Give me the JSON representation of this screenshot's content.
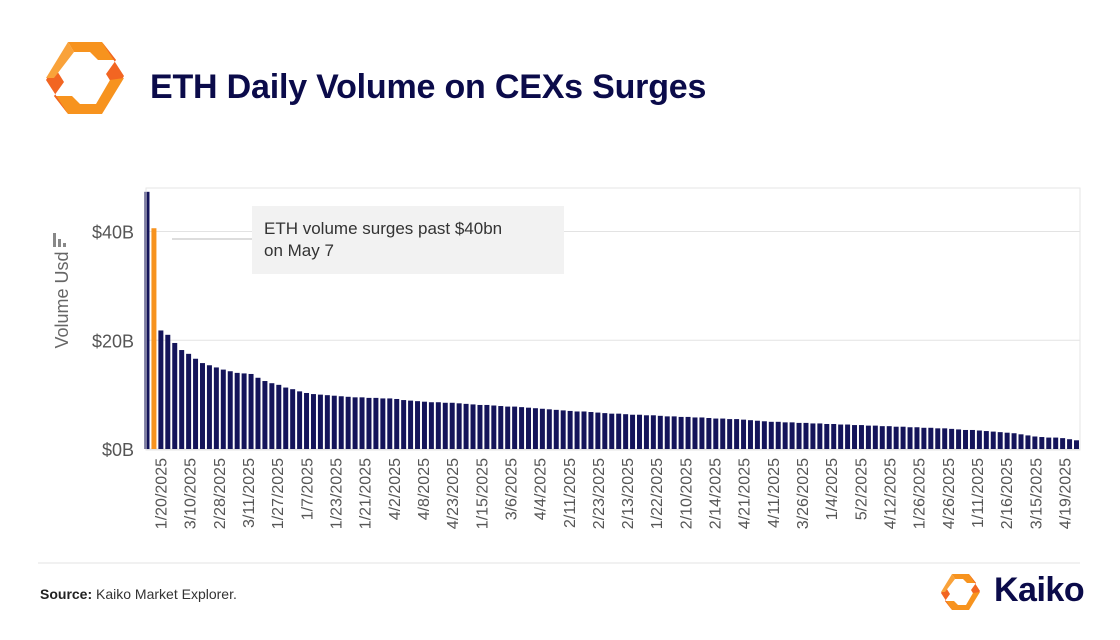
{
  "page": {
    "title": "ETH Daily Volume on CEXs Surges",
    "source_label": "Source:",
    "source_text": "Kaiko Market Explorer.",
    "brand_name": "Kaiko",
    "logo_icon": "kaiko-logo-icon",
    "chart_icon": "bar-chart-icon"
  },
  "colors": {
    "bar": "#14145a",
    "highlight": "#f7931e",
    "title": "#0b0b4a",
    "logo_orange": "#f7931e",
    "logo_dark_orange": "#f26522"
  },
  "chart_data": {
    "type": "bar",
    "ylabel": "Volume Usd",
    "ylim": [
      0,
      48
    ],
    "yticks": [
      0,
      20,
      40
    ],
    "ytick_labels": [
      "$0B",
      "$20B",
      "$40B"
    ],
    "grid": true,
    "highlight_index": 1,
    "annotation": {
      "text_line1": "ETH volume surges past $40bn",
      "text_line2": "on May 7",
      "target_index": 1
    },
    "xtick_labels": [
      "1/20/2025",
      "3/10/2025",
      "2/28/2025",
      "3/11/2025",
      "1/27/2025",
      "1/7/2025",
      "1/23/2025",
      "1/21/2025",
      "4/2/2025",
      "4/8/2025",
      "4/23/2025",
      "1/15/2025",
      "3/6/2025",
      "4/4/2025",
      "2/11/2025",
      "2/23/2025",
      "2/13/2025",
      "1/22/2025",
      "2/10/2025",
      "2/14/2025",
      "4/21/2025",
      "4/11/2025",
      "3/26/2025",
      "1/4/2025",
      "5/2/2025",
      "4/12/2025",
      "1/26/2025",
      "4/26/2025",
      "1/11/2025",
      "2/16/2025",
      "3/15/2025",
      "4/19/2025"
    ],
    "values": [
      47.3,
      40.6,
      21.8,
      21.0,
      19.5,
      18.2,
      17.5,
      16.6,
      15.8,
      15.4,
      15.0,
      14.6,
      14.3,
      14.0,
      13.9,
      13.8,
      13.1,
      12.5,
      12.1,
      11.8,
      11.3,
      11.0,
      10.6,
      10.3,
      10.1,
      10.0,
      9.9,
      9.8,
      9.7,
      9.6,
      9.5,
      9.5,
      9.4,
      9.4,
      9.3,
      9.3,
      9.2,
      9.0,
      8.9,
      8.8,
      8.7,
      8.6,
      8.6,
      8.5,
      8.5,
      8.4,
      8.3,
      8.2,
      8.1,
      8.1,
      8.0,
      7.9,
      7.8,
      7.8,
      7.7,
      7.6,
      7.5,
      7.4,
      7.3,
      7.2,
      7.1,
      7.0,
      6.9,
      6.9,
      6.8,
      6.7,
      6.6,
      6.5,
      6.5,
      6.4,
      6.3,
      6.3,
      6.2,
      6.2,
      6.1,
      6.0,
      6.0,
      5.9,
      5.9,
      5.8,
      5.8,
      5.7,
      5.6,
      5.6,
      5.5,
      5.5,
      5.4,
      5.3,
      5.2,
      5.1,
      5.0,
      5.0,
      4.9,
      4.9,
      4.8,
      4.8,
      4.7,
      4.7,
      4.6,
      4.6,
      4.5,
      4.5,
      4.4,
      4.4,
      4.3,
      4.3,
      4.2,
      4.2,
      4.1,
      4.1,
      4.0,
      4.0,
      3.9,
      3.9,
      3.8,
      3.8,
      3.7,
      3.6,
      3.5,
      3.5,
      3.4,
      3.3,
      3.2,
      3.1,
      3.0,
      2.9,
      2.7,
      2.5,
      2.3,
      2.2,
      2.1,
      2.1,
      2.0,
      1.8,
      1.6
    ]
  }
}
